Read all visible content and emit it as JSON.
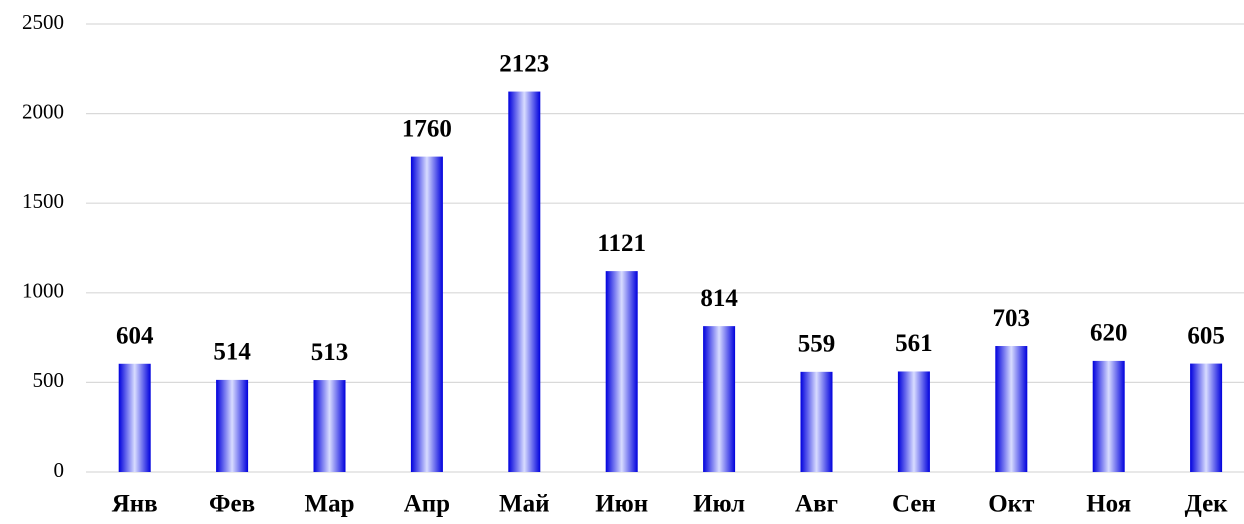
{
  "chart_data": {
    "type": "bar",
    "categories": [
      "Янв",
      "Фев",
      "Мар",
      "Апр",
      "Май",
      "Июн",
      "Июл",
      "Авг",
      "Сен",
      "Окт",
      "Ноя",
      "Дек"
    ],
    "values": [
      604,
      514,
      513,
      1760,
      2123,
      1121,
      814,
      559,
      561,
      703,
      620,
      605
    ],
    "color": "#0000dd",
    "ylim": [
      0,
      2500
    ],
    "yticks": [
      0,
      500,
      1000,
      1500,
      2000,
      2500
    ],
    "grid": true
  }
}
